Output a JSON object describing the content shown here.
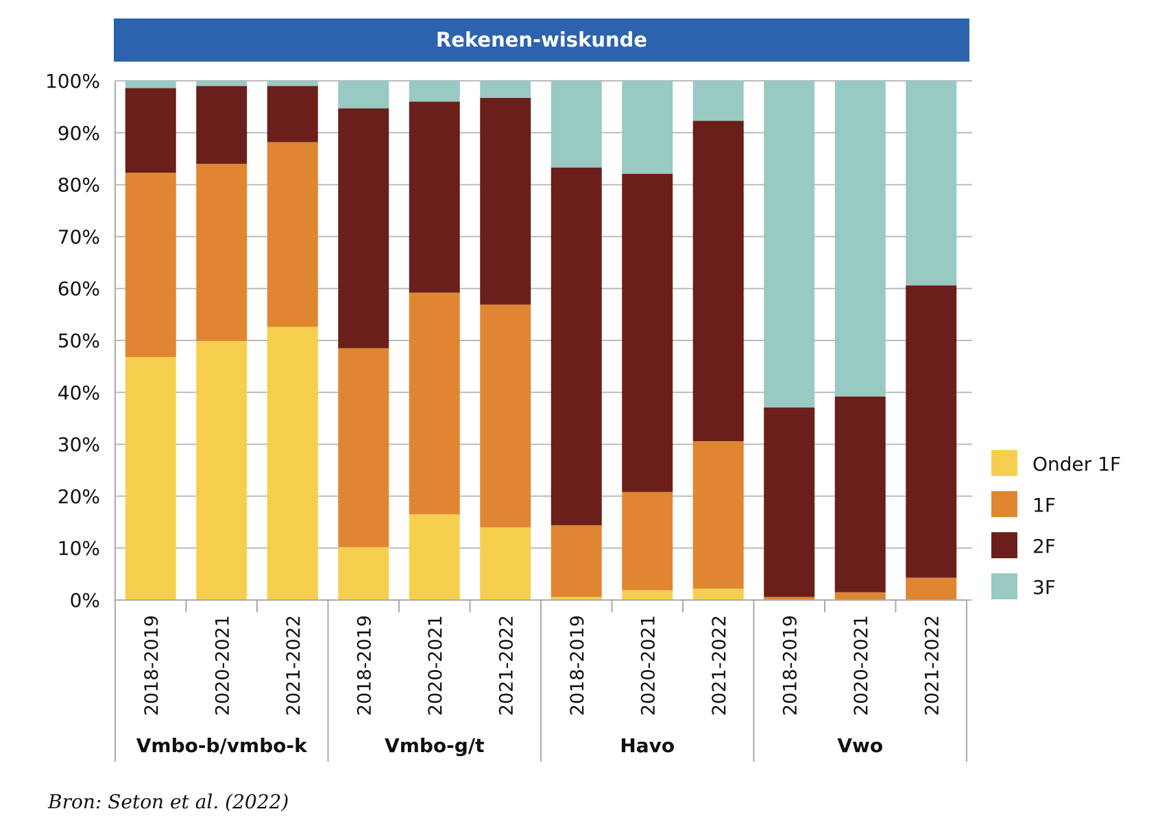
{
  "chart_data": {
    "type": "bar",
    "stacked": true,
    "title": "Rekenen-wiskunde",
    "ylim": [
      0,
      100
    ],
    "y_ticks": [
      "0%",
      "10%",
      "20%",
      "30%",
      "40%",
      "50%",
      "60%",
      "70%",
      "80%",
      "90%",
      "100%"
    ],
    "grid": true,
    "legend_position": "right",
    "groups": [
      "Vmbo-b/vmbo-k",
      "Vmbo-g/t",
      "Havo",
      "Vwo"
    ],
    "periods": [
      "2018-2019",
      "2020-2021",
      "2021-2022"
    ],
    "categories": [
      "2018-2019",
      "2020-2021",
      "2021-2022",
      "2018-2019",
      "2020-2021",
      "2021-2022",
      "2018-2019",
      "2020-2021",
      "2021-2022",
      "2018-2019",
      "2020-2021",
      "2021-2022"
    ],
    "series": [
      {
        "name": "Onder 1F",
        "color": "#F6CF4E",
        "values": [
          46.8,
          49.9,
          52.6,
          10.2,
          16.5,
          14.0,
          0.6,
          1.9,
          2.2,
          0.0,
          0.0,
          0.0
        ]
      },
      {
        "name": "1F",
        "color": "#E08632",
        "values": [
          35.5,
          34.1,
          35.6,
          38.3,
          42.7,
          42.9,
          13.8,
          18.9,
          28.4,
          0.6,
          1.5,
          4.3
        ]
      },
      {
        "name": "2F",
        "color": "#6B1F1A",
        "values": [
          16.3,
          15.0,
          10.8,
          46.2,
          36.8,
          39.8,
          68.9,
          61.3,
          61.7,
          36.5,
          37.7,
          56.3
        ]
      },
      {
        "name": "3F",
        "color": "#98C9C2",
        "values": [
          1.4,
          1.0,
          1.0,
          5.3,
          4.0,
          3.3,
          16.7,
          17.9,
          7.7,
          62.9,
          60.8,
          39.4
        ]
      }
    ],
    "source": "Bron: Seton et al. (2022)"
  },
  "colors": {
    "title_bar": "#2B63AE",
    "title_text": "#FFFFFF",
    "grid": "#BBBBBB",
    "axis": "#AAAAAA",
    "text": "#111111"
  }
}
